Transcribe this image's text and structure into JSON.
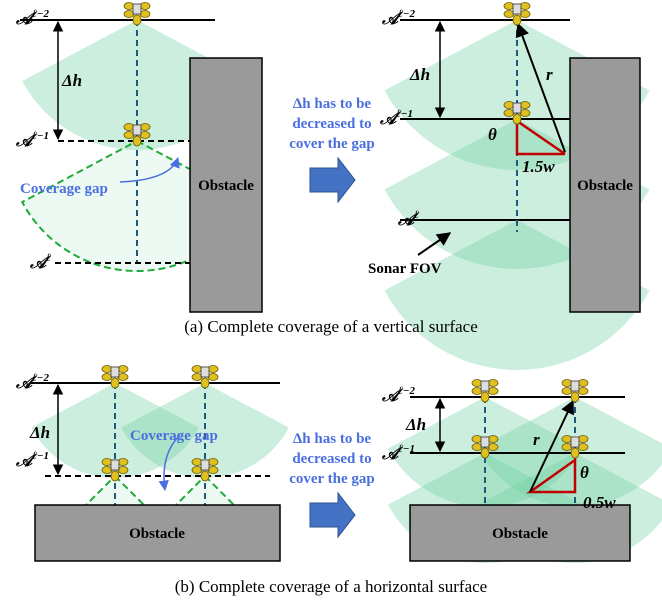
{
  "panel_a": {
    "left": {
      "levels": [
        {
          "base": "𝒜",
          "sup": "ℓ−2"
        },
        {
          "base": "𝒜",
          "sup": "ℓ−1"
        },
        {
          "base": "𝒜",
          "sup": "ℓ"
        }
      ],
      "delta_h": "Δh",
      "coverage_gap": "Coverage gap",
      "obstacle": "Obstacle"
    },
    "middle": [
      "Δh has to be",
      "decreased to",
      "cover the gap"
    ],
    "right": {
      "levels": [
        {
          "base": "𝒜",
          "sup": "ℓ−2"
        },
        {
          "base": "𝒜",
          "sup": "ℓ−1"
        },
        {
          "base": "𝒜",
          "sup": "ℓ"
        }
      ],
      "delta_h": "Δh",
      "r": "r",
      "theta": "θ",
      "width": "1.5w",
      "sonar_fov": "Sonar FOV",
      "obstacle": "Obstacle"
    },
    "caption": "(a) Complete coverage of a vertical surface"
  },
  "panel_b": {
    "left": {
      "levels": [
        {
          "base": "𝒜",
          "sup": "ℓ−2"
        },
        {
          "base": "𝒜",
          "sup": "ℓ−1"
        }
      ],
      "delta_h": "Δh",
      "coverage_gap": "Coverage gap",
      "obstacle": "Obstacle"
    },
    "middle": [
      "Δh has to be",
      "decreased to",
      "cover the gap"
    ],
    "right": {
      "levels": [
        {
          "base": "𝒜",
          "sup": "ℓ−2"
        },
        {
          "base": "𝒜",
          "sup": "ℓ−1"
        }
      ],
      "delta_h": "Δh",
      "r": "r",
      "theta": "θ",
      "width": "0.5w",
      "obstacle": "Obstacle"
    },
    "caption": "(b) Complete coverage of a horizontal surface"
  }
}
